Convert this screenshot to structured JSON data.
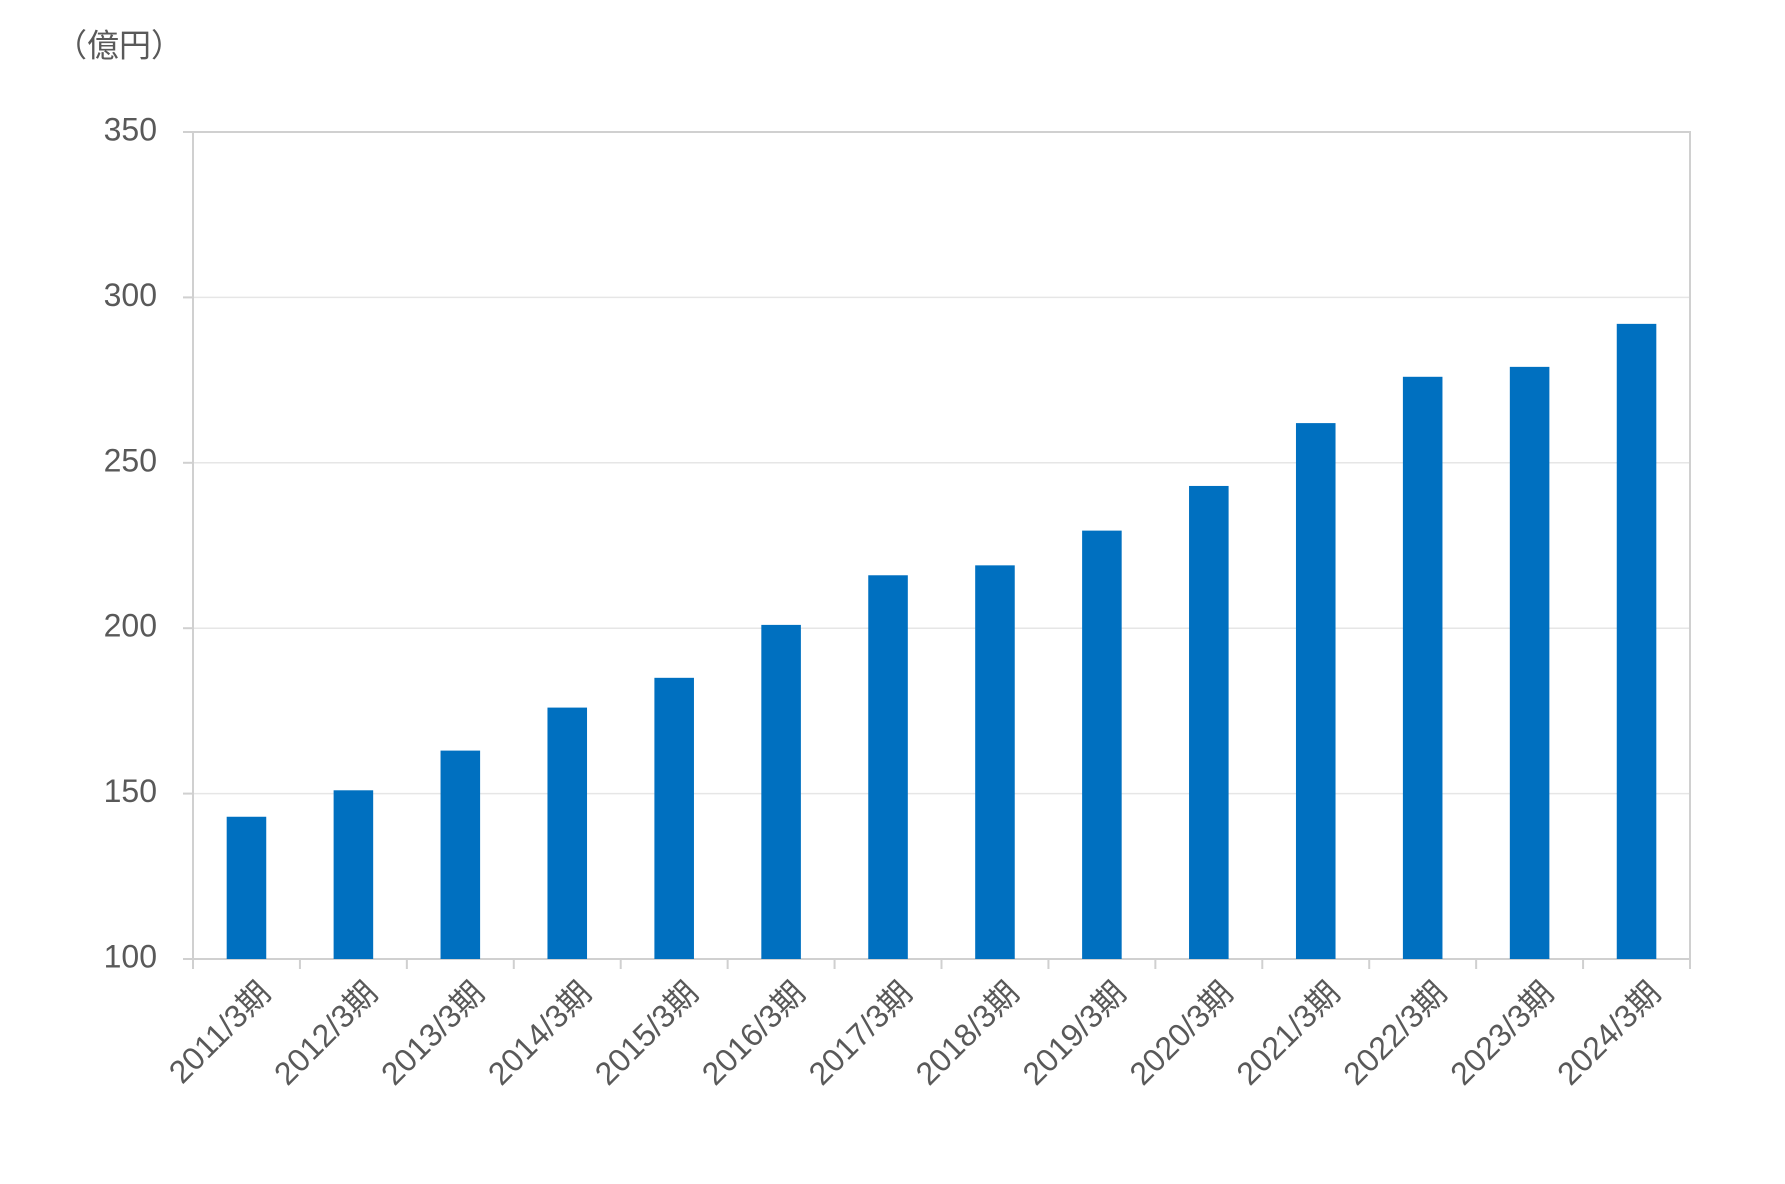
{
  "chart_data": {
    "type": "bar",
    "y_unit": "（億円）",
    "categories": [
      "2011/3期",
      "2012/3期",
      "2013/3期",
      "2014/3期",
      "2015/3期",
      "2016/3期",
      "2017/3期",
      "2018/3期",
      "2019/3期",
      "2020/3期",
      "2021/3期",
      "2022/3期",
      "2023/3期",
      "2024/3期"
    ],
    "values": [
      143,
      151,
      163,
      176,
      185,
      201,
      216,
      219,
      229.5,
      243,
      262,
      276,
      279,
      292
    ],
    "color": "#0070c0",
    "ylim": [
      100,
      350
    ],
    "yticks": [
      100,
      150,
      200,
      250,
      300,
      350
    ],
    "grid": true
  }
}
